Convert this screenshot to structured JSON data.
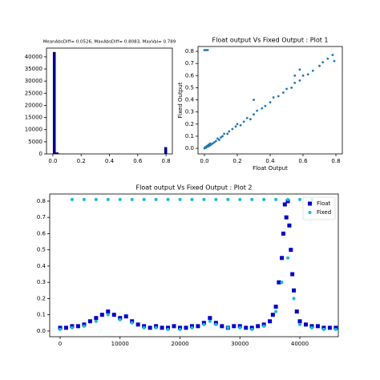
{
  "chart_data": [
    {
      "type": "histogram",
      "title": "MeanAbsDiff= 0.0526, MaxAbsDiff= 0.8083, MaxVal= 0.789",
      "bins": [
        0,
        0.0202,
        0.0404,
        0.0606,
        0.0808,
        0.101,
        0.1212,
        0.1414,
        0.1616,
        0.1818,
        0.202,
        0.2222,
        0.2424,
        0.2626,
        0.2828,
        0.303,
        0.3232,
        0.3434,
        0.3636,
        0.3838,
        0.404,
        0.4242,
        0.4444,
        0.4646,
        0.4848,
        0.505,
        0.5252,
        0.5454,
        0.5656,
        0.5858,
        0.606,
        0.6262,
        0.6464,
        0.6666,
        0.6868,
        0.707,
        0.7272,
        0.7474,
        0.7676,
        0.7878,
        0.808
      ],
      "values": [
        42000,
        600,
        120,
        40,
        20,
        10,
        5,
        0,
        0,
        0,
        0,
        0,
        0,
        0,
        0,
        0,
        0,
        0,
        0,
        0,
        0,
        0,
        0,
        0,
        0,
        0,
        0,
        0,
        0,
        0,
        0,
        0,
        0,
        0,
        0,
        0,
        0,
        0,
        0,
        2800
      ],
      "color": "#00008b",
      "xlim": [
        -0.045,
        0.845
      ],
      "ylim": [
        0,
        43600
      ],
      "xticks": [
        {
          "value": 0,
          "label": "0.0"
        },
        {
          "value": 0.2,
          "label": "0.2"
        },
        {
          "value": 0.4,
          "label": "0.4"
        },
        {
          "value": 0.6,
          "label": "0.6"
        },
        {
          "value": 0.8,
          "label": "0.8"
        }
      ],
      "yticks": [
        0,
        5000,
        10000,
        15000,
        20000,
        25000,
        30000,
        35000,
        40000
      ]
    },
    {
      "type": "scatter",
      "title": "Float output Vs Fixed Output : Plot 1",
      "xlabel": "Float Output",
      "ylabel": "Fixed Output",
      "x": [
        0,
        0.005,
        0.01,
        0.015,
        0.02,
        0.025,
        0.03,
        0.035,
        0.04,
        0.05,
        0.06,
        0.07,
        0.08,
        0.09,
        0.1,
        0.11,
        0.12,
        0.14,
        0.15,
        0.17,
        0.19,
        0.2,
        0.22,
        0.24,
        0.26,
        0.28,
        0.3,
        0.32,
        0.35,
        0.37,
        0.4,
        0.42,
        0.45,
        0.48,
        0.5,
        0.53,
        0.55,
        0.58,
        0.6,
        0.63,
        0.66,
        0.7,
        0.72,
        0.75,
        0.78,
        0.79,
        0,
        0.01,
        0.02,
        0.3,
        0.55,
        0.58
      ],
      "values": [
        0,
        0.01,
        0.005,
        0.02,
        0.015,
        0.03,
        0.02,
        0.04,
        0.03,
        0.04,
        0.05,
        0.06,
        0.08,
        0.07,
        0.09,
        0.1,
        0.12,
        0.12,
        0.14,
        0.16,
        0.18,
        0.2,
        0.19,
        0.22,
        0.25,
        0.24,
        0.28,
        0.31,
        0.33,
        0.35,
        0.38,
        0.42,
        0.43,
        0.46,
        0.49,
        0.5,
        0.54,
        0.56,
        0.6,
        0.61,
        0.64,
        0.68,
        0.71,
        0.74,
        0.77,
        0.72,
        0.81,
        0.81,
        0.81,
        0.4,
        0.6,
        0.65
      ],
      "color": "#1f77b4",
      "xlim": [
        -0.039,
        0.839
      ],
      "ylim": [
        -0.046,
        0.84
      ],
      "xticks": [
        {
          "value": 0,
          "label": "0.0"
        },
        {
          "value": 0.2,
          "label": "0.2"
        },
        {
          "value": 0.4,
          "label": "0.4"
        },
        {
          "value": 0.6,
          "label": "0.6"
        },
        {
          "value": 0.8,
          "label": "0.8"
        }
      ],
      "yticks": [
        {
          "value": 0,
          "label": "0.0"
        },
        {
          "value": 0.1,
          "label": "0.1"
        },
        {
          "value": 0.2,
          "label": "0.2"
        },
        {
          "value": 0.3,
          "label": "0.3"
        },
        {
          "value": 0.4,
          "label": "0.4"
        },
        {
          "value": 0.5,
          "label": "0.5"
        },
        {
          "value": 0.6,
          "label": "0.6"
        },
        {
          "value": 0.7,
          "label": "0.7"
        },
        {
          "value": 0.8,
          "label": "0.8"
        }
      ]
    },
    {
      "type": "scatter",
      "title": "Float output Vs Fixed Output : Plot 2",
      "legend": "upper right",
      "series": [
        {
          "name": "Float",
          "color": "#0000cc",
          "marker": "square",
          "x": [
            0,
            1000,
            2000,
            3000,
            4000,
            5000,
            6000,
            7000,
            8000,
            9000,
            10000,
            11000,
            12000,
            13000,
            14000,
            15000,
            16000,
            17000,
            18000,
            19000,
            20000,
            21000,
            22000,
            23000,
            24000,
            25000,
            26000,
            27000,
            28000,
            29000,
            30000,
            31000,
            32000,
            33000,
            34000,
            35000,
            35500,
            36000,
            36500,
            37000,
            37250,
            37500,
            37750,
            38000,
            38250,
            38500,
            38750,
            39000,
            39500,
            40000,
            41000,
            42000,
            43000,
            44000,
            45000,
            46000
          ],
          "values": [
            0.02,
            0.02,
            0.03,
            0.03,
            0.04,
            0.06,
            0.08,
            0.1,
            0.12,
            0.1,
            0.08,
            0.09,
            0.06,
            0.04,
            0.03,
            0.02,
            0.03,
            0.02,
            0.02,
            0.03,
            0.02,
            0.02,
            0.03,
            0.03,
            0.05,
            0.08,
            0.05,
            0.03,
            0.02,
            0.03,
            0.03,
            0.02,
            0.02,
            0.03,
            0.04,
            0.06,
            0.1,
            0.15,
            0.3,
            0.45,
            0.6,
            0.78,
            0.7,
            0.8,
            0.65,
            0.5,
            0.35,
            0.25,
            0.12,
            0.06,
            0.04,
            0.03,
            0.03,
            0.02,
            0.02,
            0.02
          ]
        },
        {
          "name": "Fixed",
          "color": "#17becf",
          "marker": "circle",
          "x": [
            0,
            2000,
            4000,
            6000,
            8000,
            10000,
            12000,
            14000,
            16000,
            18000,
            20000,
            22000,
            24000,
            25000,
            26000,
            28000,
            30000,
            32000,
            34000,
            36000,
            37000,
            38000,
            39000,
            40000,
            42000,
            44000,
            46000,
            2000,
            4000,
            6000,
            8000,
            10000,
            12000,
            14000,
            16000,
            18000,
            20000,
            22000,
            24000,
            26000,
            28000,
            30000,
            32000,
            34000,
            36000,
            38000,
            40000,
            42000
          ],
          "values": [
            0.01,
            0.02,
            0.03,
            0.06,
            0.1,
            0.07,
            0.05,
            0.02,
            0.02,
            0.01,
            0.01,
            0.02,
            0.04,
            0.06,
            0.04,
            0.02,
            0.02,
            0.01,
            0.03,
            0.12,
            0.3,
            0.45,
            0.2,
            0.04,
            0.02,
            0.01,
            0.01,
            0.81,
            0.81,
            0.81,
            0.81,
            0.81,
            0.81,
            0.81,
            0.81,
            0.81,
            0.81,
            0.81,
            0.81,
            0.81,
            0.81,
            0.81,
            0.81,
            0.81,
            0.81,
            0.81,
            0.81,
            0.81
          ]
        }
      ],
      "xlim": [
        -1739,
        46421
      ],
      "ylim": [
        -0.035,
        0.844
      ],
      "xticks": [
        0,
        10000,
        20000,
        30000,
        40000
      ],
      "yticks": [
        {
          "value": 0,
          "label": "0.0"
        },
        {
          "value": 0.1,
          "label": "0.1"
        },
        {
          "value": 0.2,
          "label": "0.2"
        },
        {
          "value": 0.3,
          "label": "0.3"
        },
        {
          "value": 0.4,
          "label": "0.4"
        },
        {
          "value": 0.5,
          "label": "0.5"
        },
        {
          "value": 0.6,
          "label": "0.6"
        },
        {
          "value": 0.7,
          "label": "0.7"
        },
        {
          "value": 0.8,
          "label": "0.8"
        }
      ]
    }
  ]
}
